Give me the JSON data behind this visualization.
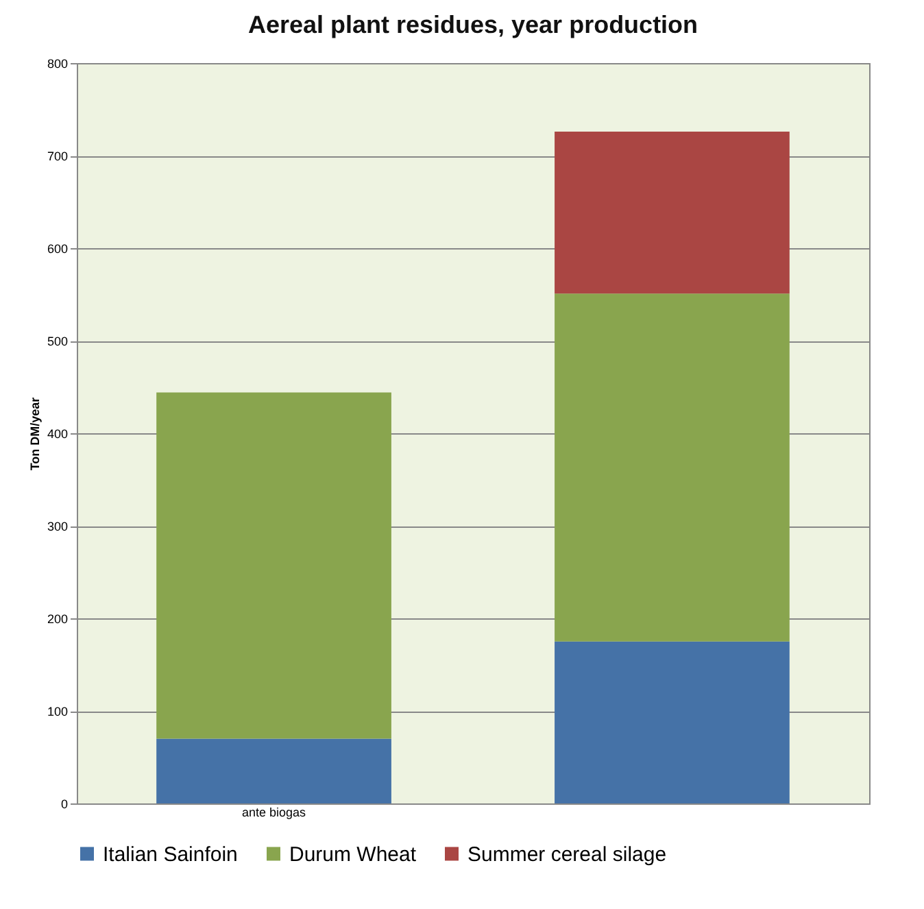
{
  "chart_data": {
    "type": "bar",
    "title": "Aereal plant residues, year production",
    "ylabel": "Ton DM/year",
    "categories": [
      "ante biogas",
      null
    ],
    "stacked": true,
    "series": [
      {
        "name": "Italian Sainfoin",
        "color": "#4572a7",
        "values": [
          70,
          175
        ]
      },
      {
        "name": "Durum Wheat",
        "color": "#89a54e",
        "values": [
          374,
          376
        ]
      },
      {
        "name": "Summer cereal silage",
        "color": "#aa4643",
        "values": [
          null,
          175
        ]
      }
    ],
    "ylim": [
      0,
      800
    ],
    "yticks": [
      0,
      100,
      200,
      300,
      400,
      500,
      600,
      700,
      800
    ],
    "grid": "y",
    "legend": "bottom"
  }
}
